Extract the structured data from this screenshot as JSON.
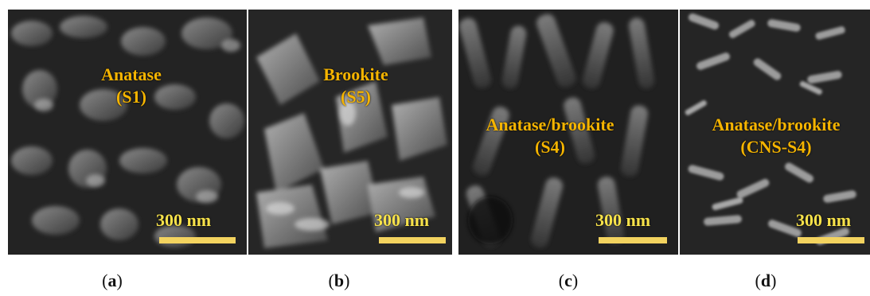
{
  "panels": [
    {
      "id": "a",
      "lines": [
        "Anatase",
        "(S1)"
      ],
      "scale": "300 nm",
      "caption_letter": "a"
    },
    {
      "id": "b",
      "lines": [
        "Brookite",
        "(S5)"
      ],
      "scale": "300 nm",
      "caption_letter": "b"
    },
    {
      "id": "c",
      "lines": [
        "Anatase/brookite",
        "(S4)"
      ],
      "scale": "300 nm",
      "caption_letter": "c"
    },
    {
      "id": "d",
      "lines": [
        "Anatase/brookite",
        "(CNS-S4)"
      ],
      "scale": "300 nm",
      "caption_letter": "d"
    }
  ],
  "colors": {
    "label": "#f5b400",
    "scale_text": "#f7e24a",
    "scale_bar": "#f3d35f",
    "caption": "#111111"
  }
}
